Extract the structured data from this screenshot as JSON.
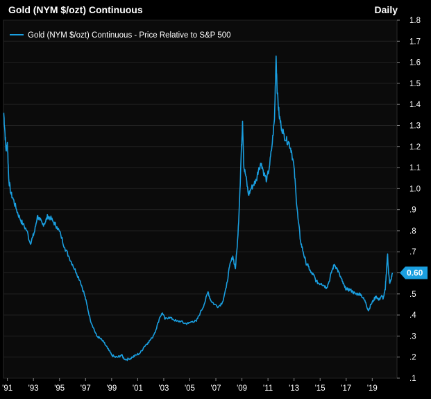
{
  "header": {
    "title": "Gold (NYM $/ozt) Continuous",
    "frequency": "Daily"
  },
  "chart_data": {
    "type": "line",
    "title": "Gold (NYM $/ozt) Continuous",
    "legend": "Gold (NYM $/ozt) Continuous - Price Relative to S&P 500",
    "legend_position": "top-left",
    "xlabel": "",
    "ylabel": "",
    "ylim": [
      0.1,
      1.8
    ],
    "xlim": [
      1990.7,
      2020.9
    ],
    "yticks": [
      0.1,
      0.2,
      0.3,
      0.4,
      0.5,
      0.6,
      0.7,
      0.8,
      0.9,
      1.0,
      1.1,
      1.2,
      1.3,
      1.4,
      1.5,
      1.6,
      1.7,
      1.8
    ],
    "ytick_labels": [
      ".1",
      ".2",
      ".3",
      ".4",
      ".5",
      ".6",
      ".7",
      ".8",
      ".9",
      "1.0",
      "1.1",
      "1.2",
      "1.3",
      "1.4",
      "1.5",
      "1.6",
      "1.7",
      "1.8"
    ],
    "xticks": [
      1991,
      1993,
      1995,
      1997,
      1999,
      2001,
      2003,
      2005,
      2007,
      2009,
      2011,
      2013,
      2015,
      2017,
      2019
    ],
    "xtick_labels": [
      "'91",
      "'93",
      "'95",
      "'97",
      "'99",
      "'01",
      "'03",
      "'05",
      "'07",
      "'09",
      "'11",
      "'13",
      "'15",
      "'17",
      "'19"
    ],
    "last_value": 0.6,
    "last_value_label": "0.60",
    "color": "#1a9fe0",
    "series": [
      {
        "name": "Gold (NYM $/ozt) Continuous - Price Relative to S&P 500",
        "points": [
          [
            1990.72,
            1.36
          ],
          [
            1990.8,
            1.28
          ],
          [
            1990.9,
            1.18
          ],
          [
            1991.0,
            1.22
          ],
          [
            1991.1,
            1.05
          ],
          [
            1991.25,
            0.98
          ],
          [
            1991.45,
            0.95
          ],
          [
            1991.7,
            0.9
          ],
          [
            1991.95,
            0.86
          ],
          [
            1992.2,
            0.83
          ],
          [
            1992.5,
            0.8
          ],
          [
            1992.75,
            0.74
          ],
          [
            1992.95,
            0.77
          ],
          [
            1993.1,
            0.8
          ],
          [
            1993.3,
            0.87
          ],
          [
            1993.5,
            0.85
          ],
          [
            1993.7,
            0.83
          ],
          [
            1993.9,
            0.84
          ],
          [
            1994.1,
            0.87
          ],
          [
            1994.3,
            0.86
          ],
          [
            1994.55,
            0.84
          ],
          [
            1994.8,
            0.82
          ],
          [
            1995.1,
            0.78
          ],
          [
            1995.4,
            0.72
          ],
          [
            1995.7,
            0.68
          ],
          [
            1996.0,
            0.64
          ],
          [
            1996.3,
            0.6
          ],
          [
            1996.6,
            0.56
          ],
          [
            1996.9,
            0.5
          ],
          [
            1997.1,
            0.45
          ],
          [
            1997.35,
            0.38
          ],
          [
            1997.6,
            0.34
          ],
          [
            1997.85,
            0.3
          ],
          [
            1998.1,
            0.29
          ],
          [
            1998.4,
            0.27
          ],
          [
            1998.7,
            0.24
          ],
          [
            1999.0,
            0.21
          ],
          [
            1999.25,
            0.2
          ],
          [
            1999.5,
            0.2
          ],
          [
            1999.75,
            0.21
          ],
          [
            2000.0,
            0.19
          ],
          [
            2000.3,
            0.19
          ],
          [
            2000.6,
            0.2
          ],
          [
            2000.9,
            0.21
          ],
          [
            2001.2,
            0.22
          ],
          [
            2001.5,
            0.25
          ],
          [
            2001.8,
            0.27
          ],
          [
            2002.1,
            0.29
          ],
          [
            2002.4,
            0.33
          ],
          [
            2002.7,
            0.39
          ],
          [
            2002.9,
            0.41
          ],
          [
            2003.1,
            0.38
          ],
          [
            2003.4,
            0.39
          ],
          [
            2003.7,
            0.38
          ],
          [
            2004.0,
            0.37
          ],
          [
            2004.3,
            0.37
          ],
          [
            2004.6,
            0.36
          ],
          [
            2004.9,
            0.36
          ],
          [
            2005.2,
            0.37
          ],
          [
            2005.5,
            0.37
          ],
          [
            2005.8,
            0.41
          ],
          [
            2006.1,
            0.45
          ],
          [
            2006.4,
            0.51
          ],
          [
            2006.6,
            0.47
          ],
          [
            2006.9,
            0.45
          ],
          [
            2007.2,
            0.44
          ],
          [
            2007.5,
            0.46
          ],
          [
            2007.8,
            0.53
          ],
          [
            2008.05,
            0.63
          ],
          [
            2008.3,
            0.68
          ],
          [
            2008.5,
            0.62
          ],
          [
            2008.7,
            0.78
          ],
          [
            2008.85,
            1.0
          ],
          [
            2008.95,
            1.17
          ],
          [
            2009.05,
            1.32
          ],
          [
            2009.15,
            1.1
          ],
          [
            2009.3,
            1.06
          ],
          [
            2009.5,
            0.97
          ],
          [
            2009.7,
            1.0
          ],
          [
            2009.9,
            1.02
          ],
          [
            2010.1,
            1.04
          ],
          [
            2010.3,
            1.1
          ],
          [
            2010.5,
            1.12
          ],
          [
            2010.7,
            1.07
          ],
          [
            2010.9,
            1.04
          ],
          [
            2011.1,
            1.1
          ],
          [
            2011.3,
            1.2
          ],
          [
            2011.5,
            1.33
          ],
          [
            2011.62,
            1.63
          ],
          [
            2011.72,
            1.45
          ],
          [
            2011.85,
            1.35
          ],
          [
            2012.0,
            1.3
          ],
          [
            2012.2,
            1.26
          ],
          [
            2012.4,
            1.23
          ],
          [
            2012.6,
            1.22
          ],
          [
            2012.8,
            1.18
          ],
          [
            2013.0,
            1.1
          ],
          [
            2013.15,
            0.97
          ],
          [
            2013.3,
            0.86
          ],
          [
            2013.5,
            0.75
          ],
          [
            2013.7,
            0.7
          ],
          [
            2013.9,
            0.65
          ],
          [
            2014.1,
            0.63
          ],
          [
            2014.3,
            0.6
          ],
          [
            2014.5,
            0.59
          ],
          [
            2014.7,
            0.56
          ],
          [
            2014.9,
            0.55
          ],
          [
            2015.1,
            0.55
          ],
          [
            2015.3,
            0.54
          ],
          [
            2015.5,
            0.53
          ],
          [
            2015.7,
            0.56
          ],
          [
            2015.9,
            0.61
          ],
          [
            2016.1,
            0.64
          ],
          [
            2016.3,
            0.62
          ],
          [
            2016.5,
            0.59
          ],
          [
            2016.7,
            0.56
          ],
          [
            2016.9,
            0.53
          ],
          [
            2017.1,
            0.52
          ],
          [
            2017.3,
            0.52
          ],
          [
            2017.5,
            0.51
          ],
          [
            2017.7,
            0.5
          ],
          [
            2017.9,
            0.5
          ],
          [
            2018.1,
            0.5
          ],
          [
            2018.3,
            0.48
          ],
          [
            2018.5,
            0.46
          ],
          [
            2018.7,
            0.42
          ],
          [
            2018.9,
            0.45
          ],
          [
            2019.1,
            0.47
          ],
          [
            2019.3,
            0.49
          ],
          [
            2019.5,
            0.47
          ],
          [
            2019.7,
            0.49
          ],
          [
            2019.85,
            0.48
          ],
          [
            2020.0,
            0.52
          ],
          [
            2020.1,
            0.62
          ],
          [
            2020.18,
            0.69
          ],
          [
            2020.25,
            0.6
          ],
          [
            2020.35,
            0.55
          ],
          [
            2020.45,
            0.57
          ],
          [
            2020.55,
            0.6
          ]
        ]
      }
    ]
  }
}
